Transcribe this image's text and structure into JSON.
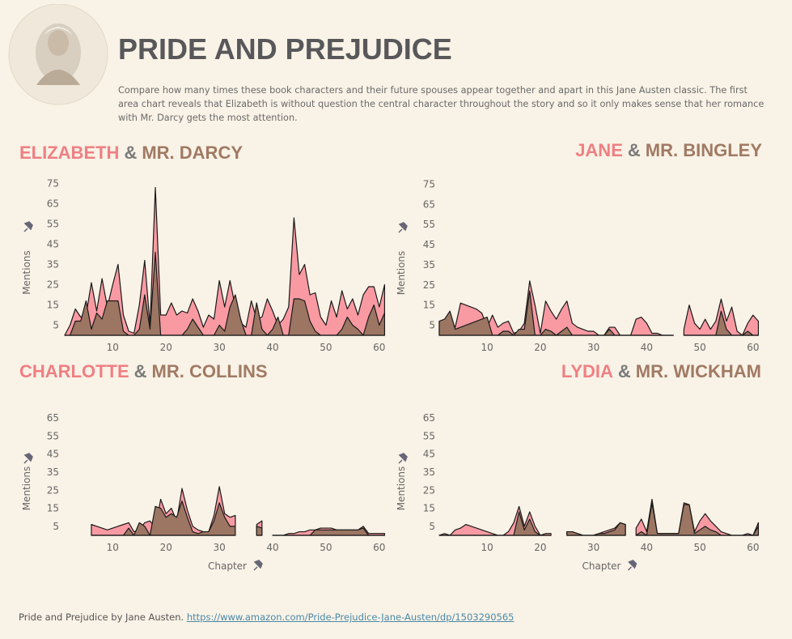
{
  "header": {
    "title": "PRIDE AND PREJUDICE",
    "description": "Compare how many times these book characters and their future spouses appear together and apart in this Jane Austen classic. The first area chart reveals that Elizabeth is without question the central character throughout the story and so it only makes sense that her romance with Mr. Darcy gets the most attention."
  },
  "chart_data": [
    {
      "type": "area",
      "title_connector": "&",
      "y_label": "Mentions",
      "x": [
        1,
        2,
        3,
        4,
        5,
        6,
        7,
        8,
        9,
        10,
        11,
        12,
        13,
        14,
        15,
        16,
        17,
        18,
        19,
        20,
        21,
        22,
        23,
        24,
        25,
        26,
        27,
        28,
        29,
        30,
        31,
        32,
        33,
        34,
        35,
        36,
        37,
        38,
        39,
        40,
        41,
        42,
        43,
        44,
        45,
        46,
        47,
        48,
        49,
        50,
        51,
        52,
        53,
        54,
        55,
        56,
        57,
        58,
        59,
        60,
        61
      ],
      "xlim": [
        1,
        62
      ],
      "ylim": [
        0,
        78
      ],
      "xticks": [
        10,
        20,
        30,
        40,
        50,
        60
      ],
      "yticks": [
        5,
        15,
        25,
        35,
        45,
        55,
        65,
        75
      ],
      "series": [
        {
          "name": "ELIZABETH",
          "color": "#f99aa3",
          "values": [
            0,
            5,
            13,
            9,
            10,
            26,
            12,
            28,
            14,
            25,
            35,
            10,
            2,
            1,
            15,
            37,
            5,
            73,
            10,
            10,
            16,
            10,
            12,
            11,
            18,
            12,
            4,
            10,
            8,
            27,
            14,
            27,
            14,
            6,
            4,
            17,
            8,
            9,
            18,
            12,
            5,
            8,
            14,
            58,
            30,
            35,
            20,
            21,
            9,
            5,
            17,
            9,
            22,
            13,
            18,
            10,
            20,
            24,
            24,
            14,
            25
          ]
        },
        {
          "name": "MR. DARCY",
          "color": "#9c7663",
          "values": [
            0,
            0,
            7,
            7,
            17,
            3,
            11,
            8,
            17,
            17,
            17,
            2,
            0,
            0,
            3,
            20,
            3,
            41,
            0,
            0,
            0,
            0,
            0,
            3,
            8,
            4,
            0,
            0,
            0,
            5,
            2,
            14,
            20,
            8,
            0,
            0,
            16,
            3,
            0,
            3,
            9,
            0,
            0,
            18,
            18,
            17,
            7,
            2,
            0,
            0,
            0,
            0,
            3,
            9,
            5,
            3,
            0,
            9,
            15,
            5,
            11
          ]
        }
      ]
    },
    {
      "type": "area",
      "title_connector": "&",
      "y_label": "Mentions",
      "x": [
        1,
        2,
        3,
        4,
        5,
        6,
        7,
        8,
        9,
        10,
        11,
        12,
        13,
        14,
        15,
        16,
        17,
        18,
        19,
        20,
        21,
        22,
        23,
        24,
        25,
        26,
        27,
        28,
        29,
        30,
        31,
        32,
        33,
        34,
        35,
        36,
        37,
        38,
        39,
        40,
        41,
        42,
        43,
        44,
        45,
        46,
        47,
        48,
        49,
        50,
        51,
        52,
        53,
        54,
        55,
        56,
        57,
        58,
        59,
        60,
        61
      ],
      "xlim": [
        1,
        62
      ],
      "ylim": [
        0,
        78
      ],
      "xticks": [
        10,
        20,
        30,
        40,
        50,
        60
      ],
      "yticks": [
        5,
        15,
        25,
        35,
        45,
        55,
        65,
        75
      ],
      "series": [
        {
          "name": "JANE",
          "color": "#f99aa3",
          "values": [
            7,
            7,
            8,
            4,
            16,
            15,
            14,
            13,
            11,
            4,
            10,
            4,
            6,
            7,
            1,
            2,
            6,
            27,
            15,
            1,
            17,
            12,
            8,
            13,
            17,
            6,
            4,
            3,
            2,
            2,
            0,
            0,
            4,
            4,
            0,
            0,
            0,
            8,
            9,
            6,
            1,
            1,
            0,
            0,
            0,
            null,
            3,
            15,
            6,
            3,
            8,
            3,
            7,
            18,
            7,
            14,
            2,
            0,
            6,
            10,
            7
          ]
        },
        {
          "name": "MR. BINGLEY",
          "color": "#9c7663",
          "values": [
            7,
            8,
            12,
            3,
            4,
            5,
            6,
            7,
            8,
            9,
            0,
            0,
            2,
            2,
            0,
            3,
            3,
            22,
            0,
            0,
            3,
            2,
            0,
            2,
            4,
            0,
            0,
            0,
            0,
            0,
            0,
            0,
            3,
            0,
            0,
            0,
            0,
            0,
            0,
            0,
            0,
            0,
            0,
            0,
            0,
            null,
            0,
            0,
            0,
            0,
            0,
            0,
            0,
            12,
            3,
            0,
            0,
            0,
            2,
            0,
            0
          ]
        }
      ]
    },
    {
      "type": "area",
      "title_connector": "&",
      "y_label": "Mentions",
      "x_label": "Chapter",
      "x": [
        1,
        2,
        3,
        4,
        5,
        6,
        7,
        8,
        9,
        10,
        11,
        12,
        13,
        14,
        15,
        16,
        17,
        18,
        19,
        20,
        21,
        22,
        23,
        24,
        25,
        26,
        27,
        28,
        29,
        30,
        31,
        32,
        33,
        34,
        35,
        36,
        37,
        38,
        39,
        40,
        41,
        42,
        43,
        44,
        45,
        46,
        47,
        48,
        49,
        50,
        51,
        52,
        53,
        54,
        55,
        56,
        57,
        58,
        59,
        60,
        61
      ],
      "xlim": [
        1,
        62
      ],
      "ylim": [
        0,
        70
      ],
      "xticks": [
        10,
        20,
        30,
        40,
        50,
        60
      ],
      "yticks": [
        5,
        15,
        25,
        35,
        45,
        55,
        65
      ],
      "series": [
        {
          "name": "CHARLOTTE",
          "color": "#f99aa3",
          "values": [
            null,
            null,
            null,
            null,
            null,
            6,
            5,
            4,
            3,
            4,
            5,
            6,
            7,
            2,
            3,
            7,
            8,
            4,
            20,
            12,
            15,
            8,
            26,
            14,
            5,
            3,
            2,
            2,
            11,
            27,
            12,
            10,
            11,
            null,
            null,
            null,
            6,
            8,
            null,
            0,
            0,
            0,
            1,
            1,
            2,
            2,
            3,
            3,
            4,
            4,
            4,
            3,
            3,
            3,
            3,
            3,
            5,
            1,
            1,
            1,
            1
          ]
        },
        {
          "name": "MR. COLLINS",
          "color": "#9c7663",
          "values": [
            null,
            null,
            null,
            null,
            null,
            0,
            0,
            0,
            0,
            0,
            0,
            0,
            4,
            0,
            7,
            5,
            0,
            16,
            15,
            10,
            12,
            10,
            19,
            10,
            2,
            1,
            2,
            2,
            8,
            18,
            10,
            5,
            5,
            null,
            null,
            null,
            5,
            4,
            null,
            0,
            0,
            0,
            0,
            0,
            0,
            0,
            0,
            3,
            3,
            3,
            3,
            3,
            3,
            3,
            3,
            3,
            4,
            0,
            0,
            0,
            0
          ]
        }
      ]
    },
    {
      "type": "area",
      "title_connector": "&",
      "y_label": "Mentions",
      "x_label": "Chapter",
      "x": [
        1,
        2,
        3,
        4,
        5,
        6,
        7,
        8,
        9,
        10,
        11,
        12,
        13,
        14,
        15,
        16,
        17,
        18,
        19,
        20,
        21,
        22,
        23,
        24,
        25,
        26,
        27,
        28,
        29,
        30,
        31,
        32,
        33,
        34,
        35,
        36,
        37,
        38,
        39,
        40,
        41,
        42,
        43,
        44,
        45,
        46,
        47,
        48,
        49,
        50,
        51,
        52,
        53,
        54,
        55,
        56,
        57,
        58,
        59,
        60,
        61
      ],
      "xlim": [
        1,
        62
      ],
      "ylim": [
        0,
        70
      ],
      "xticks": [
        10,
        20,
        30,
        40,
        50,
        60
      ],
      "yticks": [
        5,
        15,
        25,
        35,
        45,
        55,
        65
      ],
      "series": [
        {
          "name": "LYDIA",
          "color": "#f99aa3",
          "values": [
            0,
            1,
            0,
            3,
            4,
            6,
            5,
            4,
            3,
            2,
            1,
            0,
            0,
            2,
            7,
            16,
            5,
            13,
            5,
            0,
            1,
            1,
            null,
            null,
            2,
            2,
            1,
            0,
            0,
            0,
            1,
            2,
            3,
            4,
            7,
            6,
            null,
            4,
            9,
            2,
            20,
            1,
            1,
            1,
            1,
            1,
            18,
            17,
            2,
            8,
            12,
            8,
            5,
            2,
            1,
            0,
            0,
            0,
            1,
            0,
            7
          ]
        },
        {
          "name": "MR. WICKHAM",
          "color": "#9c7663",
          "values": [
            0,
            0,
            0,
            0,
            0,
            0,
            0,
            0,
            0,
            0,
            0,
            0,
            0,
            0,
            0,
            13,
            3,
            9,
            2,
            0,
            0,
            0,
            null,
            null,
            2,
            2,
            1,
            0,
            0,
            0,
            1,
            1,
            2,
            3,
            7,
            6,
            null,
            0,
            2,
            0,
            18,
            1,
            1,
            1,
            1,
            1,
            17,
            17,
            1,
            3,
            5,
            3,
            2,
            0,
            0,
            0,
            0,
            0,
            0,
            0,
            5
          ]
        }
      ]
    }
  ],
  "footer": {
    "text": "Pride and Prejudice by Jane Austen.",
    "link": "https://www.amazon.com/Pride-Prejudice-Jane-Austen/dp/1503290565"
  }
}
